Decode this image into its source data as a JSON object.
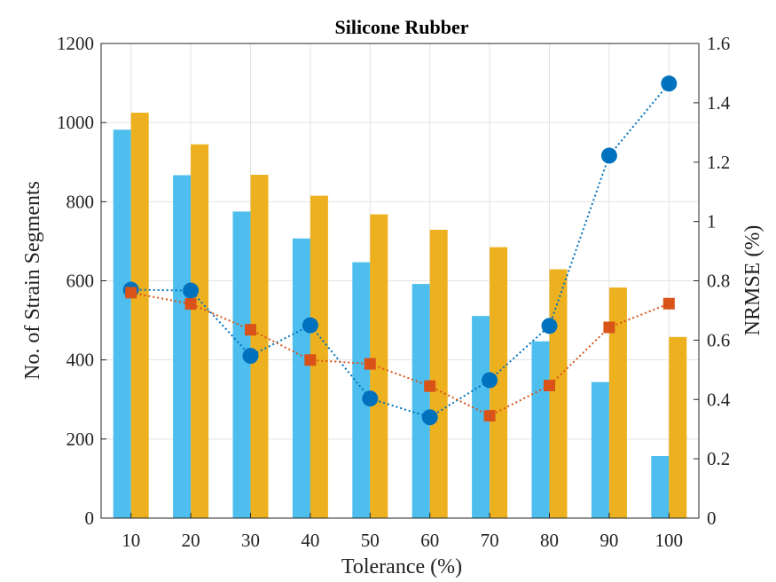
{
  "chart_data": {
    "type": "bar",
    "title": "Silicone Rubber",
    "xlabel": "Tolerance (%)",
    "ylabel": "No. of Strain Segments",
    "y2label": "NRMSE (%)",
    "categories": [
      "10",
      "20",
      "30",
      "40",
      "50",
      "60",
      "70",
      "80",
      "90",
      "100"
    ],
    "ylim": [
      0,
      1200
    ],
    "yticks": [
      0,
      200,
      400,
      600,
      800,
      1000,
      1200
    ],
    "y2lim": [
      0,
      1.6
    ],
    "y2ticks": [
      0,
      0.2,
      0.4,
      0.6,
      0.8,
      1,
      1.2,
      1.4,
      1.6
    ],
    "y2ticklabels": [
      "0",
      "0.2",
      "0.4",
      "0.6",
      "0.8",
      "1",
      "1.2",
      "1.4",
      "1.6"
    ],
    "grid": true,
    "bar_series": [
      {
        "color": "#4DBEEE",
        "values": [
          982,
          867,
          775,
          707,
          647,
          592,
          511,
          447,
          344,
          157
        ]
      },
      {
        "color": "#EDB120",
        "values": [
          1025,
          945,
          868,
          815,
          768,
          729,
          685,
          629,
          583,
          458
        ]
      }
    ],
    "line_series": [
      {
        "axis": "right",
        "color": "#0072BD",
        "marker": "circle",
        "linestyle": "dotted",
        "values": [
          0.77,
          0.767,
          0.547,
          0.65,
          0.403,
          0.34,
          0.465,
          0.648,
          1.222,
          1.465
        ]
      },
      {
        "axis": "right",
        "color": "#D95319",
        "marker": "square",
        "linestyle": "dotted",
        "values": [
          0.76,
          0.722,
          0.635,
          0.533,
          0.52,
          0.445,
          0.345,
          0.447,
          0.643,
          0.723
        ]
      }
    ]
  }
}
